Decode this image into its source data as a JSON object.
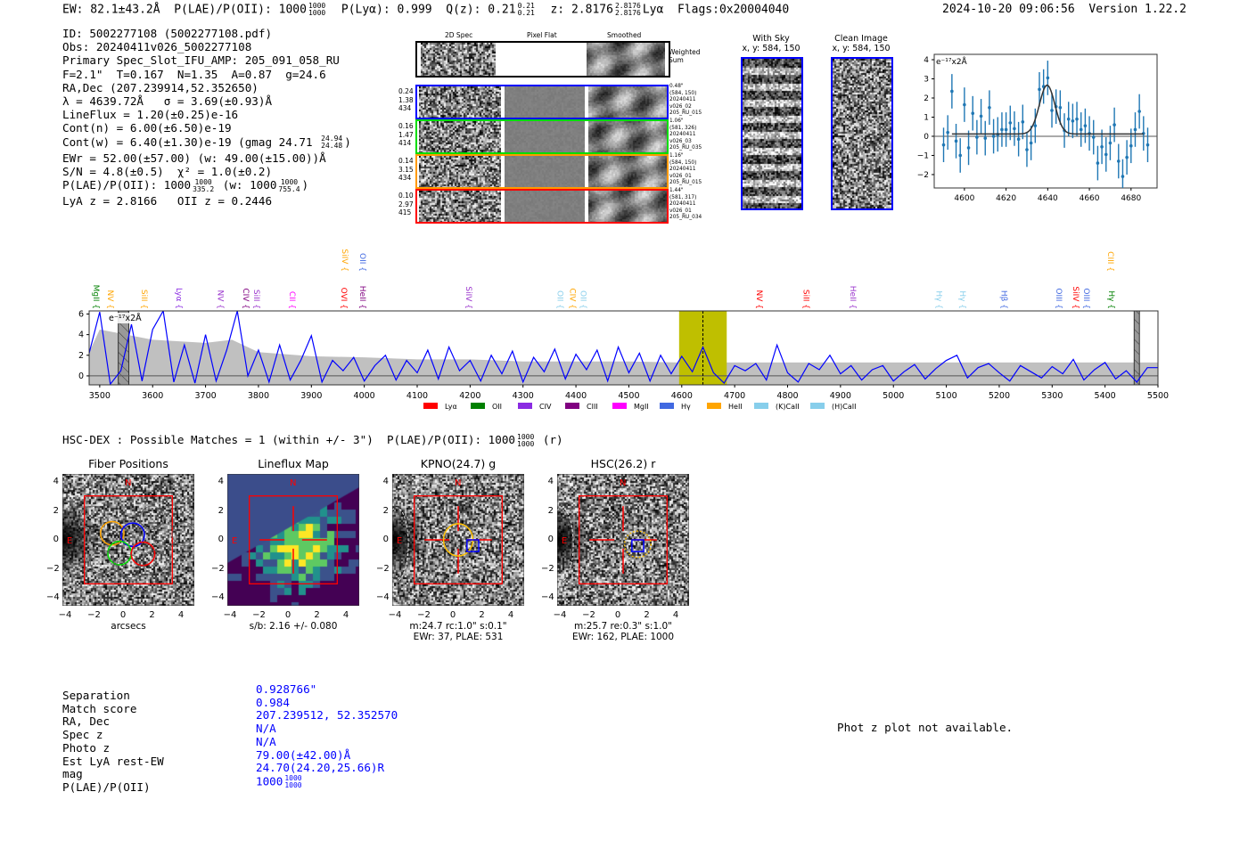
{
  "header": {
    "ew": "EW: 82.1±43.2Å",
    "plae_label": "P(LAE)/P(OII): 1000",
    "plae_hi": "1000",
    "plae_lo": "1000",
    "plya": "P(Lyα): 0.999",
    "qz": "Q(z): 0.21",
    "qz_hi": "0.21",
    "qz_lo": "0.21",
    "z": "z: 2.8176",
    "z_hi": "2.8176",
    "z_lo": "2.8176",
    "z_line": "Lyα",
    "flags": "Flags:0x20004040",
    "datetime": "2024-10-20 09:06:56",
    "version": "Version 1.22.2"
  },
  "info": {
    "id": "ID: 5002277108 (5002277108.pdf)",
    "obs": "Obs: 20240411v026_5002277108",
    "primary": "Primary Spec_Slot_IFU_AMP: 205_091_058_RU",
    "params": "F=2.1\"  T=0.167  N=1.35  A=0.87  g=24.6",
    "radec": "RA,Dec (207.239914,52.352650)",
    "lambda": "λ = 4639.72Å   σ = 3.69(±0.93)Å",
    "lineflux": "LineFlux = 1.20(±0.25)e-16",
    "contn": "Cont(n) = 6.00(±6.50)e-19",
    "contw": "Cont(w) = 6.40(±1.30)e-19 (gmag 24.71",
    "contw_hi": "24.94",
    "contw_lo": "24.48",
    "contw_end": ")",
    "ewr": "EWr = 52.00(±57.00) (w: 49.00(±15.00))Å",
    "sn": "S/N = 4.8(±0.5)  χ² = 1.0(±0.2)",
    "plae": "P(LAE)/P(OII): 1000",
    "plae_hi": "1000",
    "plae_lo": "335.2",
    "plae_w": "(w: 1000",
    "plae_w_hi": "1000",
    "plae_w_lo": "755.4",
    "plae_end": ")",
    "z": "LyA z = 2.8166   OII z = 0.2446"
  },
  "spec2d": {
    "col_titles": [
      "2D Spec",
      "Pixel Flat",
      "Smoothed"
    ],
    "weighted_label": "Weighted Sum",
    "rows": [
      {
        "color": "#0000ff",
        "left": [
          "0.24",
          "1.38",
          "434"
        ],
        "right": [
          "0.48\"",
          "(584, 150)",
          "20240411",
          "v026_02",
          "205_RU_015"
        ]
      },
      {
        "color": "#00dd00",
        "left": [
          "0.16",
          "1.47",
          "414"
        ],
        "right": [
          "1.06\"",
          "(581, 326)",
          "20240411",
          "v026_03",
          "205_RU_035"
        ]
      },
      {
        "color": "#ff9900",
        "left": [
          "0.14",
          "3.15",
          "434"
        ],
        "right": [
          "1.16\"",
          "(584, 150)",
          "20240411",
          "v026_01",
          "205_RU_015"
        ]
      },
      {
        "color": "#ff0000",
        "left": [
          "0.10",
          "2.97",
          "415"
        ],
        "right": [
          "1.44\"",
          "(581, 317)",
          "20240411",
          "v026_01",
          "205_RU_034"
        ]
      }
    ]
  },
  "cutouts_top": [
    {
      "title": "With Sky",
      "coords": "x, y: 584, 150"
    },
    {
      "title": "Clean Image",
      "coords": "x, y: 584, 150"
    }
  ],
  "chart_data": [
    {
      "type": "scatter",
      "title": "Emission line fit",
      "unit_label": "e⁻¹⁷x2Å",
      "xlim": [
        4585.5,
        4692.5
      ],
      "ylim": [
        -2.7,
        4.28
      ],
      "xticks": [
        4600,
        4620,
        4640,
        4660,
        4680
      ],
      "yticks": [
        -2,
        -1,
        0,
        1,
        2,
        3,
        4
      ],
      "x": [
        4590,
        4592,
        4594,
        4596,
        4598,
        4600,
        4602,
        4604,
        4606,
        4608,
        4610,
        4612,
        4614,
        4616,
        4618,
        4620,
        4622,
        4624,
        4626,
        4628,
        4630,
        4632,
        4634,
        4636,
        4638,
        4640,
        4642,
        4644,
        4646,
        4648,
        4650,
        4652,
        4654,
        4656,
        4658,
        4660,
        4662,
        4664,
        4666,
        4668,
        4670,
        4672,
        4674,
        4676,
        4678,
        4680,
        4682,
        4684,
        4686,
        4688
      ],
      "y": [
        -0.45,
        0.2,
        2.35,
        -0.25,
        -1.0,
        1.65,
        -0.6,
        1.2,
        -0.05,
        1.05,
        -0.1,
        1.5,
        0.0,
        0.1,
        0.35,
        0.35,
        0.7,
        0.4,
        -0.15,
        0.75,
        -0.7,
        -0.35,
        0.55,
        2.45,
        2.6,
        3.05,
        1.35,
        1.55,
        1.5,
        0.3,
        0.9,
        0.8,
        0.9,
        0.35,
        0.55,
        0.15,
        -0.05,
        -1.4,
        -0.55,
        -0.95,
        -0.35,
        0.6,
        -1.3,
        -2.1,
        -1.1,
        -0.5,
        0.35,
        1.3,
        0.15,
        -0.45
      ],
      "err": 0.9,
      "fit": {
        "center": 4639.72,
        "sigma": 3.69,
        "amplitude": 2.55,
        "baseline": 0.12,
        "range": [
          4594,
          4686
        ]
      }
    },
    {
      "type": "line",
      "title": "Spectrum",
      "unit_label": "e⁻¹⁷x2Å",
      "xlim": [
        3480,
        5500
      ],
      "ylim": [
        -0.87,
        6.3
      ],
      "xticks": [
        3500,
        3600,
        3700,
        3800,
        3900,
        4000,
        4100,
        4200,
        4300,
        4400,
        4500,
        4600,
        4700,
        4800,
        4900,
        5000,
        5100,
        5200,
        5300,
        5400,
        5500
      ],
      "yticks": [
        0,
        2,
        4,
        6
      ],
      "x_start": 3480,
      "x_step": 20,
      "values": [
        2.2,
        6.2,
        -0.8,
        0.5,
        5.0,
        -0.5,
        4.5,
        6.3,
        -0.6,
        3.0,
        -0.7,
        4.0,
        -0.5,
        2.5,
        6.3,
        0.0,
        2.5,
        -0.6,
        3.0,
        -0.4,
        1.5,
        3.9,
        -0.6,
        1.5,
        0.5,
        1.8,
        -0.5,
        1.0,
        2.0,
        -0.4,
        1.5,
        0.3,
        2.5,
        -0.3,
        2.8,
        0.5,
        1.5,
        -0.5,
        2.0,
        0.2,
        2.4,
        -0.6,
        1.8,
        0.4,
        2.6,
        -0.3,
        2.1,
        0.6,
        2.5,
        -0.5,
        2.8,
        0.3,
        2.2,
        -0.5,
        2.0,
        0.2,
        1.9,
        0.4,
        2.8,
        0.3,
        -0.7,
        1.0,
        0.5,
        1.2,
        -0.4,
        3.0,
        0.3,
        -0.6,
        1.2,
        0.6,
        2.0,
        0.2,
        1.0,
        -0.4,
        0.6,
        1.0,
        -0.5,
        0.4,
        1.1,
        -0.3,
        0.7,
        1.5,
        2.0,
        -0.2,
        0.8,
        1.2,
        0.3,
        -0.5,
        1.0,
        0.4,
        -0.2,
        0.9,
        0.2,
        1.6,
        -0.4,
        0.6,
        1.3,
        -0.3,
        0.5,
        -0.6,
        0.8,
        0.8
      ],
      "noise_envelope": {
        "x": [
          3480,
          3500,
          3600,
          3700,
          3750,
          3800,
          3900,
          4000,
          4100,
          4200,
          4300,
          4400,
          4500,
          4600,
          4800,
          5000,
          5200,
          5500
        ],
        "y": [
          2.3,
          4.5,
          3.5,
          3.2,
          3.5,
          2.3,
          1.9,
          1.8,
          1.6,
          1.6,
          1.4,
          1.4,
          1.4,
          1.3,
          1.3,
          1.3,
          1.3,
          1.3
        ]
      },
      "highlight": [
        4595,
        4685
      ],
      "line_center": 4640,
      "masked": [
        [
          3535,
          3555
        ],
        [
          5455,
          5465
        ]
      ],
      "line_labels": [
        {
          "name": "MgII",
          "wave": 3483,
          "row": "low",
          "color": "#008000"
        },
        {
          "name": "NV",
          "wave": 3510,
          "row": "low",
          "color": "#ffa500"
        },
        {
          "name": "SiII",
          "wave": 3574,
          "row": "low",
          "color": "#ffa500"
        },
        {
          "name": "Lyα",
          "wave": 3640,
          "row": "low",
          "color": "#8a2be2"
        },
        {
          "name": "NV",
          "wave": 3718,
          "row": "low",
          "color": "#9932cc"
        },
        {
          "name": "CIV",
          "wave": 3766,
          "row": "low",
          "color": "#800080"
        },
        {
          "name": "SiII",
          "wave": 3787,
          "row": "low",
          "color": "#9932cc"
        },
        {
          "name": "CII",
          "wave": 3854,
          "row": "low",
          "color": "#ff00ff"
        },
        {
          "name": "OVI",
          "wave": 3952,
          "row": "low",
          "color": "#ff0000"
        },
        {
          "name": "HeII",
          "wave": 3987,
          "row": "low",
          "color": "#800080"
        },
        {
          "name": "SiIV",
          "wave": 3953,
          "row": "high",
          "color": "#ffa500"
        },
        {
          "name": "OII",
          "wave": 3987,
          "row": "high",
          "color": "#4169e1"
        },
        {
          "name": "SiIV",
          "wave": 4188,
          "row": "low",
          "color": "#9932cc"
        },
        {
          "name": "OII",
          "wave": 4360,
          "row": "low",
          "color": "#87ceeb"
        },
        {
          "name": "CIV",
          "wave": 4384,
          "row": "low",
          "color": "#ffa500"
        },
        {
          "name": "OII",
          "wave": 4398,
          "row": "low",
          "color": "#87ceeb"
        },
        {
          "name": "NV",
          "wave": 4737,
          "row": "low",
          "color": "#ff0000"
        },
        {
          "name": "SiII",
          "wave": 4825,
          "row": "low",
          "color": "#ff0000"
        },
        {
          "name": "HeII",
          "wave": 4914,
          "row": "low",
          "color": "#9932cc"
        },
        {
          "name": "Hγ",
          "wave": 5076,
          "row": "low",
          "color": "#87ceeb"
        },
        {
          "name": "Hγ",
          "wave": 5121,
          "row": "low",
          "color": "#87ceeb"
        },
        {
          "name": "Hβ",
          "wave": 5199,
          "row": "low",
          "color": "#4169e1"
        },
        {
          "name": "OIII",
          "wave": 5303,
          "row": "low",
          "color": "#4169e1"
        },
        {
          "name": "SiIV",
          "wave": 5335,
          "row": "low",
          "color": "#ff0000"
        },
        {
          "name": "OIII",
          "wave": 5354,
          "row": "low",
          "color": "#4169e1"
        },
        {
          "name": "CIII",
          "wave": 5401,
          "row": "high",
          "color": "#ffa500"
        },
        {
          "name": "Hγ",
          "wave": 5402,
          "row": "low",
          "color": "#008000"
        }
      ],
      "legend": [
        {
          "name": "Lyα",
          "color": "#ff0000"
        },
        {
          "name": "OII",
          "color": "#008000"
        },
        {
          "name": "CIV",
          "color": "#8a2be2"
        },
        {
          "name": "CIII",
          "color": "#800080"
        },
        {
          "name": "MgII",
          "color": "#ff00ff"
        },
        {
          "name": "Hγ",
          "color": "#4169e1"
        },
        {
          "name": "HeII",
          "color": "#ffa500"
        },
        {
          "name": "(K)CaII",
          "color": "#87ceeb"
        },
        {
          "name": "(H)CaII",
          "color": "#87ceeb"
        }
      ]
    }
  ],
  "matches": {
    "title": "HSC-DEX : Possible Matches = 1 (within +/- 3\")  P(LAE)/P(OII): 1000",
    "hi": "1000",
    "lo": "1000",
    "end": "(r)"
  },
  "cutouts": [
    {
      "title": "Fiber Positions",
      "caption1": "arcsecs",
      "caption2": ""
    },
    {
      "title": "Lineflux Map",
      "caption1": "s/b: 2.16 +/- 0.080",
      "caption2": ""
    },
    {
      "title": "KPNO(24.7) g",
      "caption1": "m:24.7 rc:1.0\"  s:0.1\"",
      "caption2": "EWr: 37, PLAE: 531"
    },
    {
      "title": "HSC(26.2) r",
      "caption1": "m:25.7  re:0.3\"  s:1.0\"",
      "caption2": "EWr: 162, PLAE: 1000"
    }
  ],
  "cutout_ticks": [
    "4",
    "2",
    "0",
    "−2",
    "−4"
  ],
  "cutout_xticks": [
    "−4",
    "−2",
    "0",
    "2",
    "4"
  ],
  "compass": {
    "n": "N",
    "e": "E"
  },
  "details": {
    "labels": [
      "Separation",
      "Match score",
      "RA, Dec",
      "Spec z",
      "Photo z",
      "Est LyA rest-EW",
      "mag",
      "P(LAE)/P(OII)"
    ],
    "values": [
      "0.928766\"",
      "0.984",
      "207.239512, 52.352570",
      "N/A",
      "N/A",
      "79.00(±42.00)Å",
      "24.70(24.20,25.66)R",
      "1000"
    ],
    "plae_hi": "1000",
    "plae_lo": "1000"
  },
  "photz": "Phot z plot not available."
}
